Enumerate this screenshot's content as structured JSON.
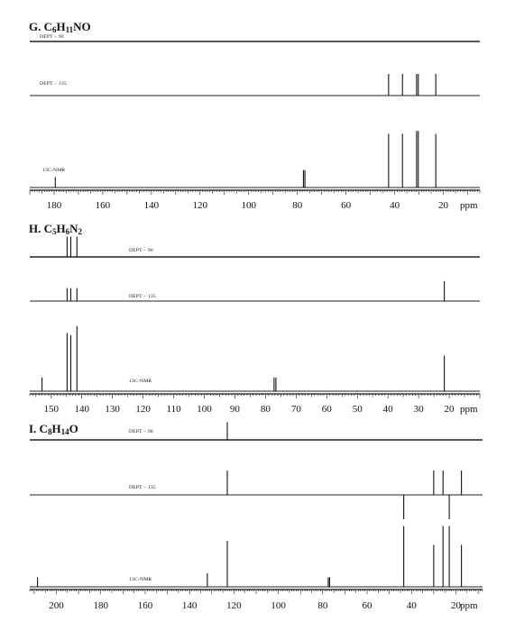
{
  "chart_data": [
    {
      "type": "nmr_spectrum",
      "heading": "G. C6H11NO",
      "formula_parts": [
        {
          "t": "G.  C",
          "sub": false
        },
        {
          "t": "6",
          "sub": true
        },
        {
          "t": "H",
          "sub": false
        },
        {
          "t": "11",
          "sub": true
        },
        {
          "t": "NO",
          "sub": false
        }
      ],
      "x_unit": "ppm",
      "x_range": [
        190,
        5
      ],
      "x_ticks": [
        180,
        160,
        140,
        120,
        100,
        80,
        60,
        40,
        20
      ],
      "traces": [
        {
          "label": "DEPT – 90",
          "peaks": []
        },
        {
          "label": "DEPT – 135",
          "peaks": [
            {
              "ppm": 42.5,
              "h": 0.6
            },
            {
              "ppm": 36.8,
              "h": 0.6
            },
            {
              "ppm": 31.0,
              "h": 0.6
            },
            {
              "ppm": 30.3,
              "h": 0.6
            },
            {
              "ppm": 23.1,
              "h": 0.6
            }
          ]
        },
        {
          "label": "13C-NMR",
          "peaks": [
            {
              "ppm": 179.5,
              "h": 0.18
            },
            {
              "ppm": 77.5,
              "h": 0.3
            },
            {
              "ppm": 76.9,
              "h": 0.3
            },
            {
              "ppm": 42.5,
              "h": 0.93
            },
            {
              "ppm": 36.8,
              "h": 0.93
            },
            {
              "ppm": 31.0,
              "h": 0.98
            },
            {
              "ppm": 30.3,
              "h": 0.98
            },
            {
              "ppm": 23.1,
              "h": 0.93
            }
          ]
        }
      ]
    },
    {
      "type": "nmr_spectrum",
      "heading": "H. C5H6N2",
      "formula_parts": [
        {
          "t": "H.  C",
          "sub": false
        },
        {
          "t": "5",
          "sub": true
        },
        {
          "t": "H",
          "sub": false
        },
        {
          "t": "6",
          "sub": true
        },
        {
          "t": "N",
          "sub": false
        },
        {
          "t": "2",
          "sub": true
        }
      ],
      "x_unit": "ppm",
      "x_range": [
        157,
        10
      ],
      "x_ticks": [
        150,
        140,
        130,
        120,
        110,
        100,
        90,
        80,
        70,
        60,
        50,
        40,
        30,
        20
      ],
      "traces": [
        {
          "label": "DEPT – 90",
          "peaks": [
            {
              "ppm": 144.8,
              "h": 0.9
            },
            {
              "ppm": 143.6,
              "h": 0.9
            },
            {
              "ppm": 141.6,
              "h": 0.9
            }
          ]
        },
        {
          "label": "DEPT – 135",
          "peaks": [
            {
              "ppm": 144.8,
              "h": 0.55
            },
            {
              "ppm": 143.6,
              "h": 0.55
            },
            {
              "ppm": 141.6,
              "h": 0.55
            },
            {
              "ppm": 21.6,
              "h": 0.85
            }
          ]
        },
        {
          "label": "13C-NMR",
          "peaks": [
            {
              "ppm": 153.0,
              "h": 0.2
            },
            {
              "ppm": 144.8,
              "h": 0.85
            },
            {
              "ppm": 143.6,
              "h": 0.82
            },
            {
              "ppm": 141.6,
              "h": 0.95
            },
            {
              "ppm": 77.2,
              "h": 0.2
            },
            {
              "ppm": 76.6,
              "h": 0.2
            },
            {
              "ppm": 21.6,
              "h": 0.52
            }
          ]
        }
      ]
    },
    {
      "type": "nmr_spectrum",
      "heading": "I. C8H14O",
      "formula_parts": [
        {
          "t": "I.  C",
          "sub": false
        },
        {
          "t": "8",
          "sub": true
        },
        {
          "t": "H",
          "sub": false
        },
        {
          "t": "14",
          "sub": true
        },
        {
          "t": "O",
          "sub": false
        }
      ],
      "x_unit": "ppm",
      "x_range": [
        212,
        8
      ],
      "x_ticks": [
        200,
        180,
        160,
        140,
        120,
        100,
        80,
        60,
        40,
        20
      ],
      "traces": [
        {
          "label": "DEPT – 90",
          "peaks": [
            {
              "ppm": 123.0,
              "h": 0.98
            }
          ]
        },
        {
          "label": "DEPT – 135",
          "peaks": [
            {
              "ppm": 123.0,
              "h": 0.9
            },
            {
              "ppm": 43.5,
              "h": -0.9
            },
            {
              "ppm": 30.0,
              "h": 0.9
            },
            {
              "ppm": 25.8,
              "h": 0.9
            },
            {
              "ppm": 23.0,
              "h": -0.9
            },
            {
              "ppm": 17.5,
              "h": 0.9
            }
          ]
        },
        {
          "label": "13C-NMR",
          "peaks": [
            {
              "ppm": 208.5,
              "h": 0.14
            },
            {
              "ppm": 132.0,
              "h": 0.2
            },
            {
              "ppm": 123.0,
              "h": 0.68
            },
            {
              "ppm": 77.5,
              "h": 0.14
            },
            {
              "ppm": 76.9,
              "h": 0.14
            },
            {
              "ppm": 43.5,
              "h": 0.9
            },
            {
              "ppm": 30.0,
              "h": 0.62
            },
            {
              "ppm": 25.8,
              "h": 0.9
            },
            {
              "ppm": 23.0,
              "h": 0.9
            },
            {
              "ppm": 17.5,
              "h": 0.62
            }
          ]
        }
      ]
    }
  ]
}
